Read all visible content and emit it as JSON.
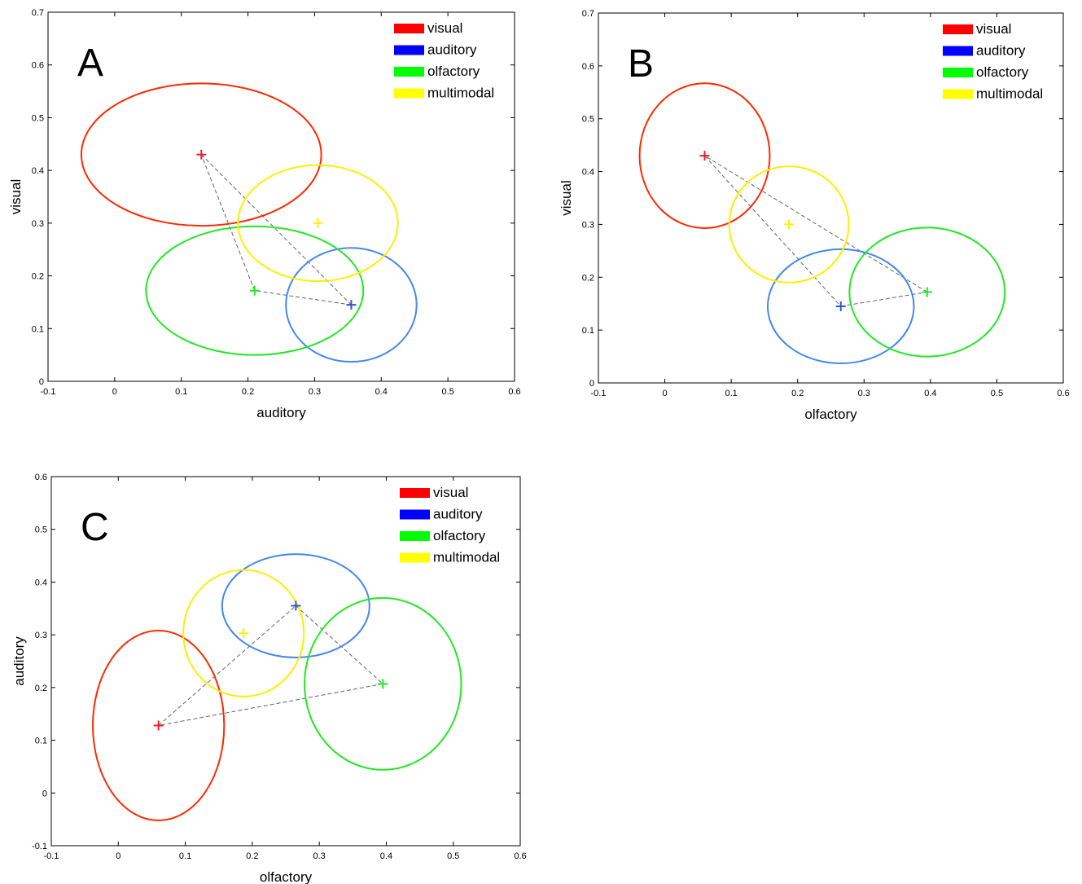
{
  "legend_entries": [
    {
      "label": "visual",
      "color": "#ff0000"
    },
    {
      "label": "auditory",
      "color": "#0000ff"
    },
    {
      "label": "olfactory",
      "color": "#00ff00"
    },
    {
      "label": "multimodal",
      "color": "#ffff00"
    }
  ],
  "chart_data": [
    {
      "type": "scatter",
      "panel_label": "A",
      "xlabel": "auditory",
      "ylabel": "visual",
      "xlim": [
        -0.1,
        0.6
      ],
      "ylim": [
        0,
        0.7
      ],
      "xticks": [
        -0.1,
        0,
        0.1,
        0.2,
        0.3,
        0.4,
        0.5,
        0.6
      ],
      "yticks": [
        0,
        0.1,
        0.2,
        0.3,
        0.4,
        0.5,
        0.6,
        0.7
      ],
      "xtick_labels": [
        "-0.1",
        "0",
        "0.1",
        "0.2",
        "0.3",
        "0.4",
        "0.5",
        "0.6"
      ],
      "ytick_labels": [
        "0",
        "0.1",
        "0.2",
        "0.3",
        "0.4",
        "0.5",
        "0.6",
        "0.7"
      ],
      "legend_position": "top-right",
      "series": [
        {
          "name": "visual",
          "center": [
            0.13,
            0.43
          ],
          "radius": [
            0.18,
            0.135
          ],
          "ellipse_color": "#ff2a00",
          "marker_color": "#e8202a"
        },
        {
          "name": "auditory",
          "center": [
            0.355,
            0.145
          ],
          "radius": [
            0.098,
            0.108
          ],
          "ellipse_color": "#4488ee",
          "marker_color": "#3355cc"
        },
        {
          "name": "olfactory",
          "center": [
            0.21,
            0.172
          ],
          "radius": [
            0.163,
            0.122
          ],
          "ellipse_color": "#22e822",
          "marker_color": "#22e822"
        },
        {
          "name": "multimodal",
          "center": [
            0.305,
            0.3
          ],
          "radius": [
            0.12,
            0.11
          ],
          "ellipse_color": "#ffee00",
          "marker_color": "#ffee00"
        }
      ],
      "dashed_connections": [
        [
          "visual",
          "auditory"
        ],
        [
          "auditory",
          "olfactory"
        ],
        [
          "olfactory",
          "visual"
        ]
      ]
    },
    {
      "type": "scatter",
      "panel_label": "B",
      "xlabel": "olfactory",
      "ylabel": "visual",
      "xlim": [
        -0.1,
        0.6
      ],
      "ylim": [
        0,
        0.7
      ],
      "xticks": [
        -0.1,
        0,
        0.1,
        0.2,
        0.3,
        0.4,
        0.5,
        0.6
      ],
      "yticks": [
        0,
        0.1,
        0.2,
        0.3,
        0.4,
        0.5,
        0.6,
        0.7
      ],
      "xtick_labels": [
        "-0.1",
        "0",
        "0.1",
        "0.2",
        "0.3",
        "0.4",
        "0.5",
        "0.6"
      ],
      "ytick_labels": [
        "0",
        "0.1",
        "0.2",
        "0.3",
        "0.4",
        "0.5",
        "0.6",
        "0.7"
      ],
      "legend_position": "top-right",
      "series": [
        {
          "name": "visual",
          "center": [
            0.06,
            0.43
          ],
          "radius": [
            0.098,
            0.137
          ],
          "ellipse_color": "#ff2a00",
          "marker_color": "#e8202a"
        },
        {
          "name": "auditory",
          "center": [
            0.265,
            0.145
          ],
          "radius": [
            0.11,
            0.108
          ],
          "ellipse_color": "#4488ee",
          "marker_color": "#3355cc"
        },
        {
          "name": "olfactory",
          "center": [
            0.395,
            0.172
          ],
          "radius": [
            0.117,
            0.122
          ],
          "ellipse_color": "#22e822",
          "marker_color": "#22e822"
        },
        {
          "name": "multimodal",
          "center": [
            0.187,
            0.3
          ],
          "radius": [
            0.09,
            0.11
          ],
          "ellipse_color": "#ffee00",
          "marker_color": "#ffee00"
        }
      ],
      "dashed_connections": [
        [
          "visual",
          "auditory"
        ],
        [
          "auditory",
          "olfactory"
        ],
        [
          "olfactory",
          "visual"
        ]
      ]
    },
    {
      "type": "scatter",
      "panel_label": "C",
      "xlabel": "olfactory",
      "ylabel": "auditory",
      "xlim": [
        -0.1,
        0.6
      ],
      "ylim": [
        -0.1,
        0.6
      ],
      "xticks": [
        -0.1,
        0,
        0.1,
        0.2,
        0.3,
        0.4,
        0.5,
        0.6
      ],
      "yticks": [
        -0.1,
        0,
        0.1,
        0.2,
        0.3,
        0.4,
        0.5,
        0.6
      ],
      "xtick_labels": [
        "-0.1",
        "0",
        "0.1",
        "0.2",
        "0.3",
        "0.4",
        "0.5",
        "0.6"
      ],
      "ytick_labels": [
        "-0.1",
        "0",
        "0.1",
        "0.2",
        "0.3",
        "0.4",
        "0.5",
        "0.6"
      ],
      "legend_position": "top-right",
      "series": [
        {
          "name": "visual",
          "center": [
            0.06,
            0.128
          ],
          "radius": [
            0.098,
            0.18
          ],
          "ellipse_color": "#ff2a00",
          "marker_color": "#e8202a"
        },
        {
          "name": "auditory",
          "center": [
            0.265,
            0.355
          ],
          "radius": [
            0.11,
            0.098
          ],
          "ellipse_color": "#4488ee",
          "marker_color": "#3355cc"
        },
        {
          "name": "olfactory",
          "center": [
            0.395,
            0.207
          ],
          "radius": [
            0.117,
            0.163
          ],
          "ellipse_color": "#22e822",
          "marker_color": "#22e822"
        },
        {
          "name": "multimodal",
          "center": [
            0.187,
            0.303
          ],
          "radius": [
            0.09,
            0.12
          ],
          "ellipse_color": "#ffee00",
          "marker_color": "#ffee00"
        }
      ],
      "dashed_connections": [
        [
          "visual",
          "auditory"
        ],
        [
          "auditory",
          "olfactory"
        ],
        [
          "olfactory",
          "visual"
        ]
      ]
    }
  ]
}
